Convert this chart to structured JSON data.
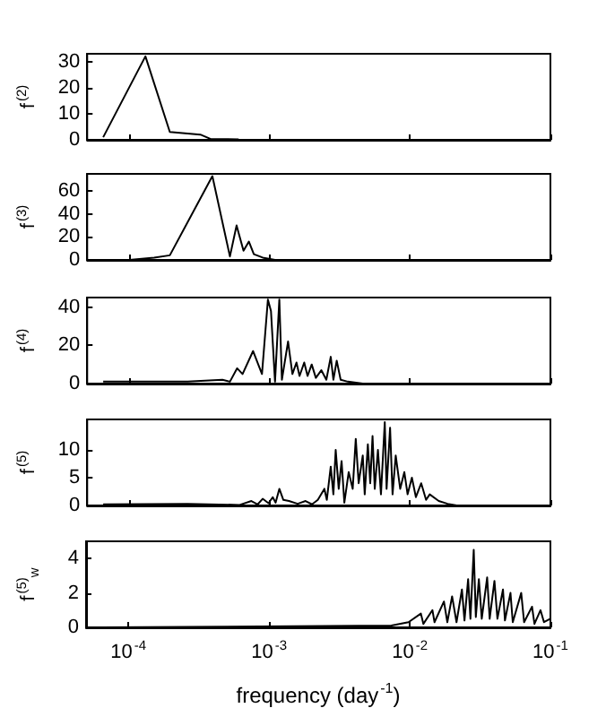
{
  "chart_data": [
    {
      "type": "line",
      "log": "x",
      "tick_labels": "y",
      "color": "#000000",
      "ylabel": "f$^{(2)}$",
      "xlim": [
        5e-05,
        0.1
      ],
      "xticks": [
        {
          "value": 0.0001,
          "label": null
        },
        {
          "value": 0.001,
          "label": null
        },
        {
          "value": 0.01,
          "label": null
        },
        {
          "value": 0.1,
          "label": null
        }
      ],
      "ylim": [
        0,
        33
      ],
      "yticks": [
        0,
        10,
        20,
        30
      ],
      "x": [
        6.5e-05,
        0.00013,
        0.000194,
        0.00032,
        0.00038,
        0.0006
      ],
      "values": [
        1,
        32,
        3,
        2,
        0.3,
        0.2
      ]
    },
    {
      "type": "line",
      "log": "x",
      "tick_labels": "y",
      "color": "#000000",
      "ylabel": "f$^{(3)}$",
      "xlim": [
        5e-05,
        0.1
      ],
      "xticks": [
        {
          "value": 0.0001,
          "label": null
        },
        {
          "value": 0.001,
          "label": null
        },
        {
          "value": 0.01,
          "label": null
        },
        {
          "value": 0.1,
          "label": null
        }
      ],
      "ylim": [
        0,
        75
      ],
      "yticks": [
        0,
        20,
        40,
        60
      ],
      "x": [
        6.5e-05,
        0.0001,
        0.00015,
        0.000194,
        0.00039,
        0.00052,
        0.00058,
        0.00065,
        0.00071,
        0.00077,
        0.00089,
        0.00109
      ],
      "values": [
        0,
        0,
        2,
        4,
        73,
        3,
        30,
        8,
        16,
        5,
        2,
        0
      ]
    },
    {
      "type": "line",
      "log": "x",
      "tick_labels": "y",
      "color": "#000000",
      "ylabel": "f$^{(4)}$",
      "xlim": [
        5e-05,
        0.1
      ],
      "xticks": [
        {
          "value": 0.0001,
          "label": null
        },
        {
          "value": 0.001,
          "label": null
        },
        {
          "value": 0.01,
          "label": null
        },
        {
          "value": 0.1,
          "label": null
        }
      ],
      "ylim": [
        0,
        45
      ],
      "yticks": [
        0,
        20,
        40
      ],
      "x": [
        6.5e-05,
        0.000132,
        0.00026,
        0.00046,
        0.00052,
        0.000585,
        0.00064,
        0.00076,
        0.00088,
        0.00097,
        0.00102,
        0.00109,
        0.00117,
        0.00122,
        0.00135,
        0.00145,
        0.00155,
        0.00163,
        0.00176,
        0.00186,
        0.00199,
        0.00213,
        0.00233,
        0.00253,
        0.00272,
        0.00284,
        0.003,
        0.0032,
        0.0036,
        0.0046,
        0.0098
      ],
      "values": [
        1,
        1,
        1,
        2,
        1,
        8,
        5,
        17,
        5,
        44,
        38,
        1,
        44,
        2,
        22,
        5,
        11,
        4,
        11,
        4,
        10,
        3,
        7,
        2,
        14,
        2,
        12,
        2,
        1,
        0,
        0
      ]
    },
    {
      "type": "line",
      "log": "x",
      "tick_labels": "y",
      "color": "#000000",
      "ylabel": "f$^{(5)}$",
      "xlim": [
        5e-05,
        0.1
      ],
      "xticks": [
        {
          "value": 0.0001,
          "label": null
        },
        {
          "value": 0.001,
          "label": null
        },
        {
          "value": 0.01,
          "label": null
        },
        {
          "value": 0.1,
          "label": null
        }
      ],
      "ylim": [
        0,
        15.5
      ],
      "yticks": [
        0,
        5,
        10
      ],
      "x": [
        6.5e-05,
        0.00026,
        0.00061,
        0.00074,
        0.00082,
        0.00089,
        0.00098,
        0.00105,
        0.0011,
        0.00117,
        0.00125,
        0.00137,
        0.00158,
        0.0018,
        0.002,
        0.0022,
        0.00245,
        0.00255,
        0.00272,
        0.00284,
        0.00295,
        0.0031,
        0.00325,
        0.0034,
        0.00365,
        0.0039,
        0.0041,
        0.0043,
        0.0046,
        0.00475,
        0.005,
        0.0052,
        0.0054,
        0.0056,
        0.0059,
        0.0062,
        0.0066,
        0.0068,
        0.0072,
        0.0075,
        0.0079,
        0.0085,
        0.0091,
        0.0096,
        0.0103,
        0.011,
        0.012,
        0.013,
        0.0138,
        0.016,
        0.0185,
        0.0215,
        0.1
      ],
      "values": [
        0.2,
        0.3,
        0.1,
        0.8,
        0.2,
        1.2,
        0.4,
        1.5,
        0.5,
        3,
        1,
        0.8,
        0.3,
        0.8,
        0.2,
        1,
        3,
        1,
        7,
        2,
        10,
        3,
        8,
        0.5,
        6,
        3,
        12,
        4,
        9,
        2,
        11,
        4,
        12.5,
        3,
        10,
        2,
        15,
        3,
        14,
        2,
        9,
        3,
        6,
        2,
        5,
        1.5,
        4,
        1,
        2,
        0.8,
        0.3,
        0,
        0
      ]
    },
    {
      "type": "line",
      "log": "x",
      "color": "#000000",
      "ylabel": "f$^{(5)}$$_{w}$",
      "xlabel": "frequency (day$^{-1}$)",
      "xlim": [
        5e-05,
        0.1
      ],
      "xticks": [
        {
          "value": 0.0001,
          "label": "10$^{-4}$"
        },
        {
          "value": 0.001,
          "label": "10$^{-3}$"
        },
        {
          "value": 0.01,
          "label": "10$^{-2}$"
        },
        {
          "value": 0.1,
          "label": "10$^{-1}$"
        }
      ],
      "ylim": [
        0,
        5
      ],
      "yticks": [
        0,
        2,
        4
      ],
      "x": [
        6.5e-05,
        0.0074,
        0.0098,
        0.012,
        0.0125,
        0.0145,
        0.015,
        0.0175,
        0.0185,
        0.02,
        0.0215,
        0.0235,
        0.0245,
        0.026,
        0.027,
        0.0285,
        0.0295,
        0.031,
        0.0325,
        0.0355,
        0.037,
        0.04,
        0.042,
        0.046,
        0.0475,
        0.052,
        0.054,
        0.062,
        0.065,
        0.074,
        0.077,
        0.085,
        0.09,
        0.1
      ],
      "values": [
        0,
        0.1,
        0.3,
        0.8,
        0.2,
        1,
        0.3,
        1.5,
        0.3,
        1.8,
        0.3,
        2.2,
        0.4,
        2.8,
        0.5,
        4.5,
        0.6,
        2.8,
        0.5,
        2.9,
        0.5,
        2.7,
        0.5,
        2.2,
        0.4,
        2,
        0.3,
        2,
        0.3,
        1.2,
        0.2,
        1,
        0.3,
        0.5
      ]
    }
  ]
}
